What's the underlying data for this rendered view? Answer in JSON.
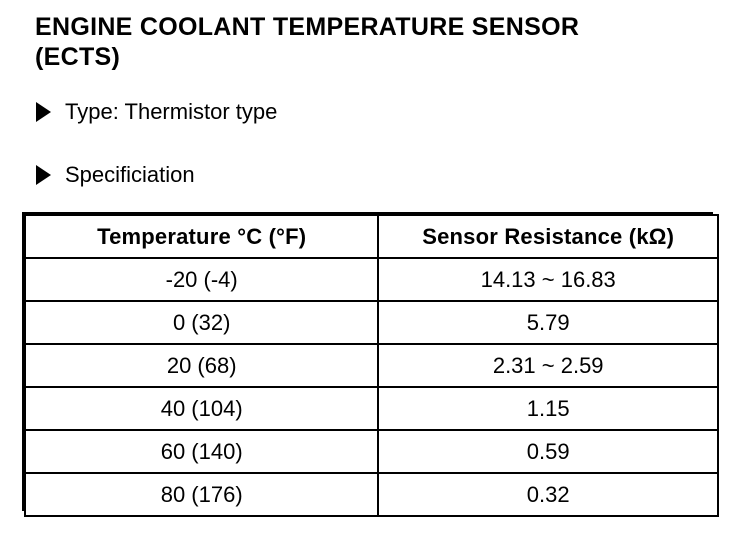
{
  "page": {
    "title_line1": "ENGINE COOLANT TEMPERATURE SENSOR",
    "title_line2": "(ECTS)"
  },
  "bullets": [
    {
      "label": "Type: Thermistor type"
    },
    {
      "label": "Specificiation"
    }
  ],
  "spec_table": {
    "headers": [
      "Temperature °C (°F)",
      "Sensor Resistance (kΩ)"
    ],
    "rows": [
      [
        "-20 (-4)",
        "14.13 ~ 16.83"
      ],
      [
        "0 (32)",
        "5.79"
      ],
      [
        "20 (68)",
        "2.31 ~ 2.59"
      ],
      [
        "40 (104)",
        "1.15"
      ],
      [
        "60 (140)",
        "0.59"
      ],
      [
        "80 (176)",
        "0.32"
      ]
    ]
  },
  "colors": {
    "text": "#000000",
    "background": "#ffffff"
  }
}
